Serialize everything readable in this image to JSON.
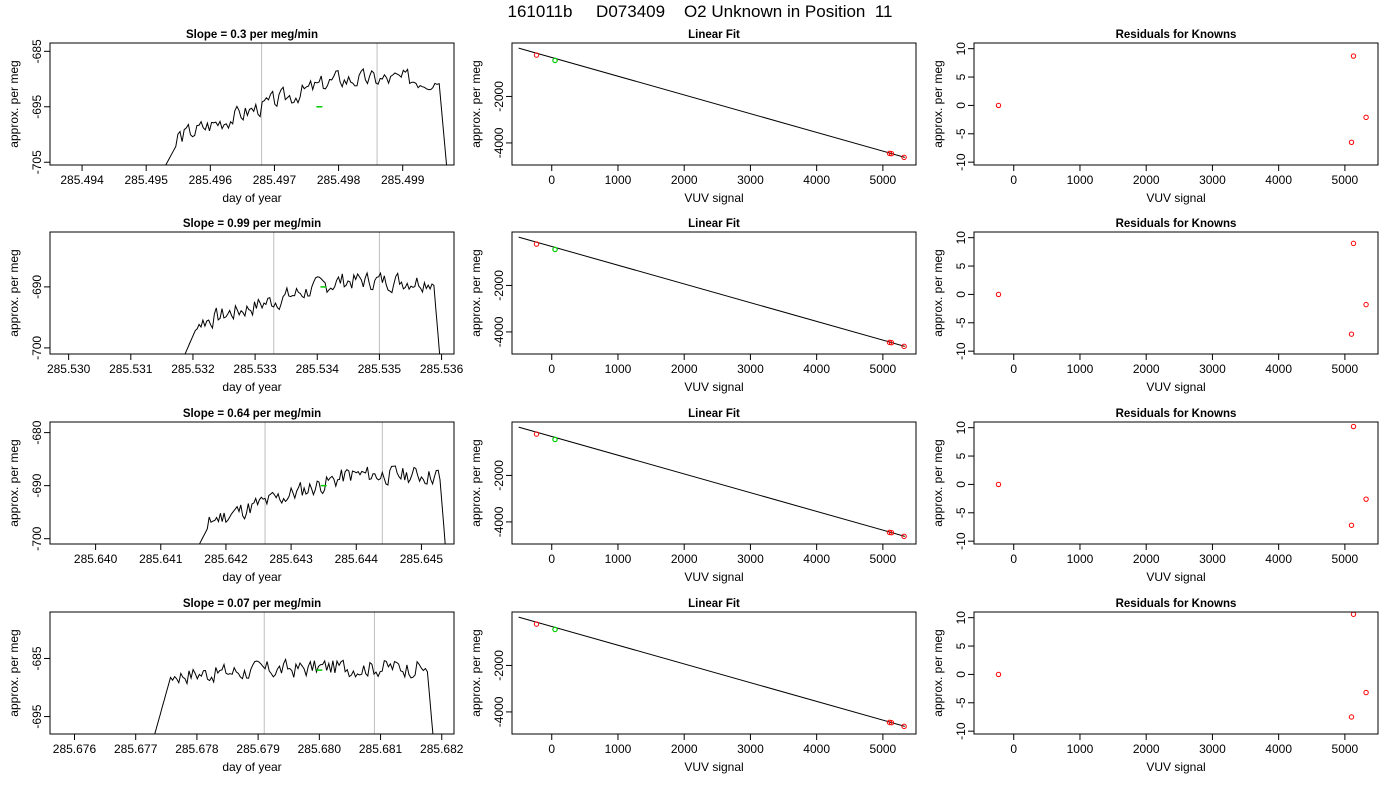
{
  "figure_title": "161011b     D073409    O2 Unknown in Position  11",
  "colors": {
    "frame": "#000000",
    "trace": "#000000",
    "marker": "#ff0000",
    "highlight": "#00cc00",
    "vline": "#bebebe"
  },
  "chart_data": [
    {
      "type": "line",
      "title": "Slope =  0.3  per meg/min",
      "xlabel": "day of year",
      "ylabel": "approx. per meg",
      "xlim": [
        285.4935,
        285.4998
      ],
      "ylim": [
        -705.5,
        -683.5
      ],
      "xticks": [
        "285.494",
        "285.495",
        "285.496",
        "285.497",
        "285.498",
        "285.499"
      ],
      "xtick_values": [
        285.494,
        285.495,
        285.496,
        285.497,
        285.498,
        285.499
      ],
      "yticks": [
        "-705",
        "-695",
        "-685"
      ],
      "ytick_values": [
        -705,
        -695,
        -685
      ],
      "vlines": [
        285.4968,
        285.4986
      ],
      "trace_start": 285.4951,
      "trace_end": 285.4997,
      "level_start": -702,
      "level_end": -690,
      "seed": 3,
      "highlight_point": {
        "x": 285.4977,
        "y": -695
      }
    },
    {
      "type": "scatter",
      "title": "Linear Fit",
      "xlabel": "VUV signal",
      "ylabel": "approx. per meg",
      "xlim": [
        -600,
        5500
      ],
      "ylim": [
        -4950,
        300
      ],
      "xticks": [
        "0",
        "1000",
        "2000",
        "3000",
        "4000",
        "5000"
      ],
      "xtick_values": [
        0,
        1000,
        2000,
        3000,
        4000,
        5000
      ],
      "yticks": [
        "-4000",
        "-2000"
      ],
      "ytick_values": [
        -4000,
        -2000
      ],
      "fit_line": [
        [
          -500,
          80
        ],
        [
          5330,
          -4620
        ]
      ],
      "points": [
        {
          "x": -230,
          "y": -220,
          "color": "red"
        },
        {
          "x": 5100,
          "y": -4450,
          "color": "red"
        },
        {
          "x": 5130,
          "y": -4465,
          "color": "red"
        },
        {
          "x": 5320,
          "y": -4620,
          "color": "red"
        }
      ],
      "highlight_point": {
        "x": 50,
        "y": -450
      }
    },
    {
      "type": "scatter",
      "title": "Residuals for Knowns",
      "xlabel": "VUV signal",
      "ylabel": "approx. per meg",
      "xlim": [
        -600,
        5500
      ],
      "ylim": [
        -10.5,
        11
      ],
      "xticks": [
        "0",
        "1000",
        "2000",
        "3000",
        "4000",
        "5000"
      ],
      "xtick_values": [
        0,
        1000,
        2000,
        3000,
        4000,
        5000
      ],
      "yticks": [
        "-10",
        "-5",
        "0",
        "5",
        "10"
      ],
      "ytick_values": [
        -10,
        -5,
        0,
        5,
        10
      ],
      "points": [
        {
          "x": -230,
          "y": 0
        },
        {
          "x": 5100,
          "y": -6.5
        },
        {
          "x": 5130,
          "y": 8.7
        },
        {
          "x": 5320,
          "y": -2.1
        }
      ]
    },
    {
      "type": "line",
      "title": "Slope =  0.99  per meg/min",
      "xlabel": "day of year",
      "ylabel": "approx. per meg",
      "xlim": [
        285.5297,
        285.5362
      ],
      "ylim": [
        -701,
        -681
      ],
      "xticks": [
        "285.530",
        "285.531",
        "285.532",
        "285.533",
        "285.534",
        "285.535",
        "285.536"
      ],
      "xtick_values": [
        285.53,
        285.531,
        285.532,
        285.533,
        285.534,
        285.535,
        285.536
      ],
      "yticks": [
        "-700",
        "-690"
      ],
      "ytick_values": [
        -700,
        -690
      ],
      "vlines": [
        285.5333,
        285.535
      ],
      "trace_start": 285.5317,
      "trace_end": 285.536,
      "level_start": -697,
      "level_end": -689,
      "seed": 7,
      "highlight_point": {
        "x": 285.5341,
        "y": -690
      }
    },
    {
      "type": "scatter",
      "title": "Linear Fit",
      "xlabel": "VUV signal",
      "ylabel": "approx. per meg",
      "xlim": [
        -600,
        5500
      ],
      "ylim": [
        -4950,
        300
      ],
      "xticks": [
        "0",
        "1000",
        "2000",
        "3000",
        "4000",
        "5000"
      ],
      "xtick_values": [
        0,
        1000,
        2000,
        3000,
        4000,
        5000
      ],
      "yticks": [
        "-4000",
        "-2000"
      ],
      "ytick_values": [
        -4000,
        -2000
      ],
      "fit_line": [
        [
          -500,
          80
        ],
        [
          5330,
          -4620
        ]
      ],
      "points": [
        {
          "x": -230,
          "y": -220,
          "color": "red"
        },
        {
          "x": 5100,
          "y": -4450,
          "color": "red"
        },
        {
          "x": 5130,
          "y": -4465,
          "color": "red"
        },
        {
          "x": 5320,
          "y": -4620,
          "color": "red"
        }
      ],
      "highlight_point": {
        "x": 50,
        "y": -450
      }
    },
    {
      "type": "scatter",
      "title": "Residuals for Knowns",
      "xlabel": "VUV signal",
      "ylabel": "approx. per meg",
      "xlim": [
        -600,
        5500
      ],
      "ylim": [
        -10.5,
        11
      ],
      "xticks": [
        "0",
        "1000",
        "2000",
        "3000",
        "4000",
        "5000"
      ],
      "xtick_values": [
        0,
        1000,
        2000,
        3000,
        4000,
        5000
      ],
      "yticks": [
        "-10",
        "-5",
        "0",
        "5",
        "10"
      ],
      "ytick_values": [
        -10,
        -5,
        0,
        5,
        10
      ],
      "points": [
        {
          "x": -230,
          "y": 0
        },
        {
          "x": 5100,
          "y": -7
        },
        {
          "x": 5130,
          "y": 9
        },
        {
          "x": 5320,
          "y": -1.8
        }
      ]
    },
    {
      "type": "line",
      "title": "Slope =  0.64  per meg/min",
      "xlabel": "day of year",
      "ylabel": "approx. per meg",
      "xlim": [
        285.6393,
        285.6455
      ],
      "ylim": [
        -701,
        -678
      ],
      "xticks": [
        "285.640",
        "285.641",
        "285.642",
        "285.643",
        "285.644",
        "285.645"
      ],
      "xtick_values": [
        285.64,
        285.641,
        285.642,
        285.643,
        285.644,
        285.645
      ],
      "yticks": [
        "-700",
        "-690",
        "-680"
      ],
      "ytick_values": [
        -700,
        -690,
        -680
      ],
      "vlines": [
        285.6426,
        285.6444
      ],
      "trace_start": 285.6414,
      "trace_end": 285.6454,
      "level_start": -698,
      "level_end": -688,
      "seed": 11,
      "highlight_point": {
        "x": 285.6435,
        "y": -690
      }
    },
    {
      "type": "scatter",
      "title": "Linear Fit",
      "xlabel": "VUV signal",
      "ylabel": "approx. per meg",
      "xlim": [
        -600,
        5500
      ],
      "ylim": [
        -4950,
        300
      ],
      "xticks": [
        "0",
        "1000",
        "2000",
        "3000",
        "4000",
        "5000"
      ],
      "xtick_values": [
        0,
        1000,
        2000,
        3000,
        4000,
        5000
      ],
      "yticks": [
        "-4000",
        "-2000"
      ],
      "ytick_values": [
        -4000,
        -2000
      ],
      "fit_line": [
        [
          -500,
          80
        ],
        [
          5330,
          -4620
        ]
      ],
      "points": [
        {
          "x": -230,
          "y": -220,
          "color": "red"
        },
        {
          "x": 5100,
          "y": -4450,
          "color": "red"
        },
        {
          "x": 5130,
          "y": -4465,
          "color": "red"
        },
        {
          "x": 5320,
          "y": -4620,
          "color": "red"
        }
      ],
      "highlight_point": {
        "x": 50,
        "y": -450
      }
    },
    {
      "type": "scatter",
      "title": "Residuals for Knowns",
      "xlabel": "VUV signal",
      "ylabel": "approx. per meg",
      "xlim": [
        -600,
        5500
      ],
      "ylim": [
        -10.5,
        11
      ],
      "xticks": [
        "0",
        "1000",
        "2000",
        "3000",
        "4000",
        "5000"
      ],
      "xtick_values": [
        0,
        1000,
        2000,
        3000,
        4000,
        5000
      ],
      "yticks": [
        "-10",
        "-5",
        "0",
        "5",
        "10"
      ],
      "ytick_values": [
        -10,
        -5,
        0,
        5,
        10
      ],
      "points": [
        {
          "x": -230,
          "y": 0
        },
        {
          "x": 5100,
          "y": -7.2
        },
        {
          "x": 5130,
          "y": 10.2
        },
        {
          "x": 5320,
          "y": -2.6
        }
      ]
    },
    {
      "type": "line",
      "title": "Slope =  0.07  per meg/min",
      "xlabel": "day of year",
      "ylabel": "approx. per meg",
      "xlim": [
        285.6756,
        285.6822
      ],
      "ylim": [
        -698,
        -677
      ],
      "xticks": [
        "285.676",
        "285.677",
        "285.678",
        "285.679",
        "285.680",
        "285.681",
        "285.682"
      ],
      "xtick_values": [
        285.676,
        285.677,
        285.678,
        285.679,
        285.68,
        285.681,
        285.682
      ],
      "yticks": [
        "-695",
        "-685"
      ],
      "ytick_values": [
        -695,
        -685
      ],
      "vlines": [
        285.6791,
        285.6809
      ],
      "trace_start": 285.6772,
      "trace_end": 285.6819,
      "level_start": -688,
      "level_end": -686.5,
      "seed": 17,
      "highlight_point": {
        "x": 285.68,
        "y": -687
      }
    },
    {
      "type": "scatter",
      "title": "Linear Fit",
      "xlabel": "VUV signal",
      "ylabel": "approx. per meg",
      "xlim": [
        -600,
        5500
      ],
      "ylim": [
        -4950,
        300
      ],
      "xticks": [
        "0",
        "1000",
        "2000",
        "3000",
        "4000",
        "5000"
      ],
      "xtick_values": [
        0,
        1000,
        2000,
        3000,
        4000,
        5000
      ],
      "yticks": [
        "-4000",
        "-2000"
      ],
      "ytick_values": [
        -4000,
        -2000
      ],
      "fit_line": [
        [
          -500,
          80
        ],
        [
          5330,
          -4620
        ]
      ],
      "points": [
        {
          "x": -230,
          "y": -220,
          "color": "red"
        },
        {
          "x": 5100,
          "y": -4450,
          "color": "red"
        },
        {
          "x": 5130,
          "y": -4465,
          "color": "red"
        },
        {
          "x": 5320,
          "y": -4620,
          "color": "red"
        }
      ],
      "highlight_point": {
        "x": 50,
        "y": -450
      }
    },
    {
      "type": "scatter",
      "title": "Residuals for Knowns",
      "xlabel": "VUV signal",
      "ylabel": "approx. per meg",
      "xlim": [
        -600,
        5500
      ],
      "ylim": [
        -10.5,
        11
      ],
      "xticks": [
        "0",
        "1000",
        "2000",
        "3000",
        "4000",
        "5000"
      ],
      "xtick_values": [
        0,
        1000,
        2000,
        3000,
        4000,
        5000
      ],
      "yticks": [
        "-10",
        "-5",
        "0",
        "5",
        "10"
      ],
      "ytick_values": [
        -10,
        -5,
        0,
        5,
        10
      ],
      "points": [
        {
          "x": -230,
          "y": 0
        },
        {
          "x": 5100,
          "y": -7.5
        },
        {
          "x": 5130,
          "y": 10.6
        },
        {
          "x": 5320,
          "y": -3.2
        }
      ]
    }
  ]
}
